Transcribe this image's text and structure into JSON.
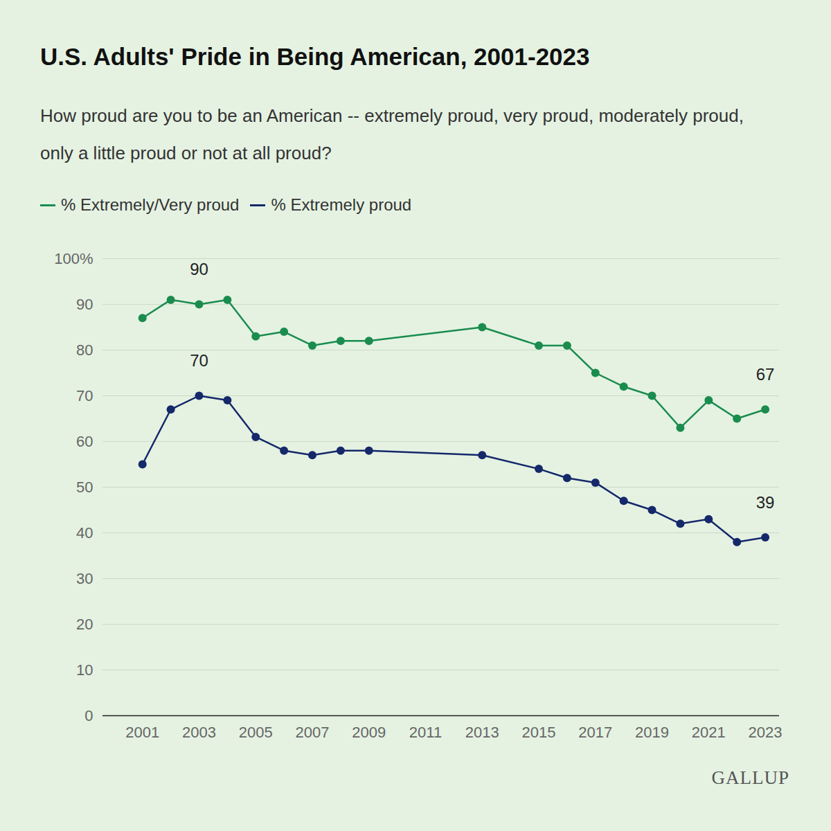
{
  "chart_data": {
    "type": "line",
    "title": "U.S. Adults' Pride in Being American, 2001-2023",
    "subtitle": "How proud are you to be an American -- extremely proud, very proud, moderately proud, only a little proud or not at all proud?",
    "source": "GALLUP",
    "x": [
      2001,
      2002,
      2003,
      2004,
      2005,
      2006,
      2007,
      2008,
      2009,
      2013,
      2015,
      2016,
      2017,
      2018,
      2019,
      2020,
      2021,
      2022,
      2023
    ],
    "series": [
      {
        "name": "% Extremely/Very proud",
        "color": "#1a8c4e",
        "marker": "circle",
        "values": [
          87,
          91,
          90,
          91,
          83,
          84,
          81,
          82,
          82,
          85,
          81,
          81,
          75,
          72,
          70,
          63,
          69,
          65,
          67
        ]
      },
      {
        "name": "% Extremely proud",
        "color": "#14286a",
        "marker": "circle",
        "values": [
          55,
          67,
          70,
          69,
          61,
          58,
          57,
          58,
          58,
          57,
          54,
          52,
          51,
          47,
          45,
          42,
          43,
          38,
          39
        ]
      }
    ],
    "annotations": [
      {
        "x": 2003,
        "y": 90,
        "text": "90"
      },
      {
        "x": 2003,
        "y": 70,
        "text": "70"
      },
      {
        "x": 2023,
        "y": 67,
        "text": "67"
      },
      {
        "x": 2023,
        "y": 39,
        "text": "39"
      }
    ],
    "xlim": [
      1999.6,
      2023.5
    ],
    "xticks": [
      2001,
      2003,
      2005,
      2007,
      2009,
      2011,
      2013,
      2015,
      2017,
      2019,
      2021,
      2023
    ],
    "ylim": [
      0,
      100
    ],
    "yticks": [
      0,
      10,
      20,
      30,
      40,
      50,
      60,
      70,
      80,
      90,
      {
        "value": 100,
        "label": "100%"
      }
    ],
    "grid": true,
    "legend": "top-left"
  }
}
